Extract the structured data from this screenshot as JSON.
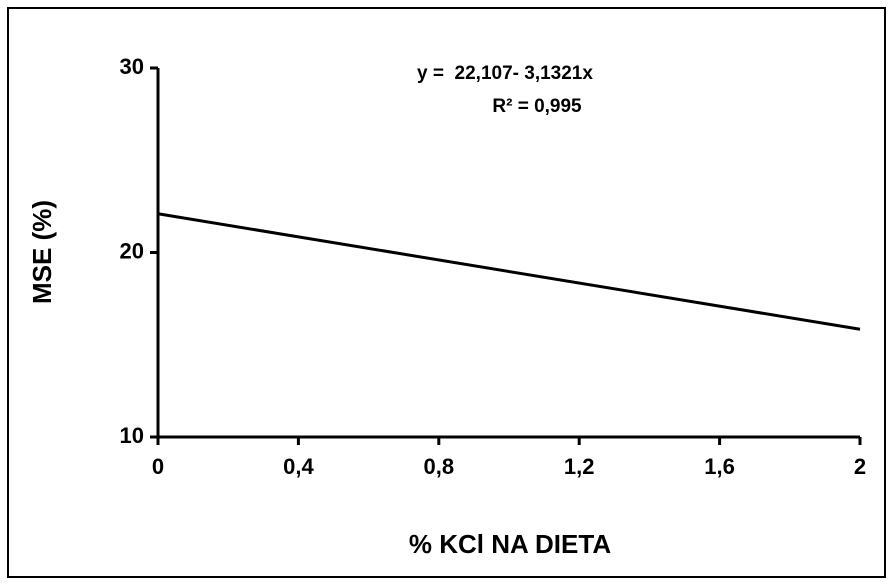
{
  "chart_data": {
    "type": "line",
    "x_label": "% KCl NA DIETA",
    "y_label": "MSE (%)",
    "annotations": [
      "y =  22,107- 3,1321x",
      "R² = 0,995"
    ],
    "x": [
      0,
      2
    ],
    "values": [
      22.1,
      15.84
    ],
    "color": "#000000",
    "xlim": [
      0,
      2
    ],
    "xticks": [
      0,
      {
        "value": 0.4,
        "label": "0,4"
      },
      {
        "value": 0.8,
        "label": "0,8"
      },
      {
        "value": 1.2,
        "label": "1,2"
      },
      {
        "value": 1.6,
        "label": "1,6"
      },
      2
    ],
    "ylim": [
      10,
      30
    ],
    "yticks": [
      10,
      20,
      30
    ],
    "grid": false
  }
}
